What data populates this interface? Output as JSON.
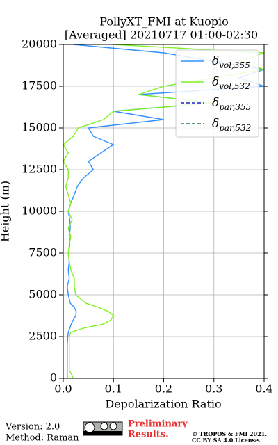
{
  "chart_data": {
    "type": "line",
    "orientation": "vertical-profile",
    "title": "PollyXT_FMI at Kuopio",
    "subtitle": "[Averaged] 20210717 01:00-02:30",
    "x_label": "Depolarization Ratio",
    "y_label": "Height (m)",
    "y": [
      0,
      500,
      1000,
      1500,
      2000,
      2500,
      2750,
      3000,
      3250,
      3500,
      3750,
      4000,
      4250,
      4500,
      5000,
      5500,
      6000,
      6500,
      7000,
      7500,
      8000,
      8500,
      9000,
      9500,
      10000,
      10500,
      11000,
      11500,
      12000,
      12500,
      13000,
      13500,
      14000,
      14500,
      15000,
      15500,
      16000,
      16500,
      17000,
      17500,
      18000,
      18500,
      19000,
      19500,
      20000
    ],
    "series": [
      {
        "name": "δvol,355",
        "color": "#3090ff",
        "dash": "solid",
        "values": [
          0.008,
          0.008,
          0.008,
          0.008,
          0.008,
          0.009,
          0.01,
          0.013,
          0.016,
          0.02,
          0.025,
          0.026,
          0.022,
          0.014,
          0.01,
          0.008,
          0.012,
          0.01,
          0.012,
          0.01,
          0.013,
          0.012,
          0.014,
          0.013,
          0.01,
          0.015,
          0.022,
          0.028,
          0.04,
          0.06,
          0.05,
          0.075,
          0.1,
          0.06,
          0.05,
          0.2,
          0.1,
          0.3,
          0.15,
          0.4,
          0.35,
          0.4,
          0.3,
          0.2,
          0.02
        ]
      },
      {
        "name": "δvol,532",
        "color": "#80f020",
        "dash": "solid",
        "values": [
          0.02,
          0.012,
          0.012,
          0.012,
          0.012,
          0.012,
          0.015,
          0.04,
          0.08,
          0.095,
          0.1,
          0.09,
          0.07,
          0.045,
          0.025,
          0.022,
          0.022,
          0.015,
          0.012,
          0.01,
          0.012,
          0.015,
          0.01,
          0.018,
          0.01,
          0.015,
          0.01,
          0.005,
          0.01,
          0.01,
          0.0,
          0.01,
          0.0,
          0.02,
          0.03,
          0.08,
          0.1,
          0.3,
          0.15,
          0.2,
          0.3,
          0.4,
          0.35,
          0.4,
          0.1
        ]
      },
      {
        "name": "δpar,355",
        "color": "#2020c0",
        "dash": "dashed",
        "values": [
          null,
          null,
          null,
          null,
          null,
          null,
          null,
          null,
          null,
          null,
          null,
          null,
          null,
          null,
          null,
          null,
          null,
          null,
          null,
          null,
          null,
          null,
          null,
          null,
          null,
          null,
          null,
          null,
          null,
          null,
          null,
          null,
          null,
          null,
          null,
          null,
          null,
          null,
          null,
          null,
          null,
          null,
          null,
          null,
          null
        ]
      },
      {
        "name": "δpar,532",
        "color": "#208040",
        "dash": "dashed",
        "values": [
          null,
          null,
          null,
          null,
          null,
          null,
          null,
          null,
          null,
          null,
          null,
          null,
          null,
          null,
          null,
          null,
          null,
          null,
          null,
          null,
          null,
          null,
          null,
          null,
          null,
          null,
          null,
          null,
          null,
          null,
          null,
          null,
          null,
          null,
          null,
          null,
          null,
          null,
          null,
          null,
          null,
          null,
          null,
          null,
          null
        ]
      }
    ],
    "xlim": [
      0,
      0.4
    ],
    "xticks": [
      {
        "value": 0,
        "label": "0.0"
      },
      0.1,
      0.2,
      0.3,
      0.4
    ],
    "ylim": [
      0,
      20000
    ],
    "yticks": [
      0,
      2500,
      5000,
      7500,
      10000,
      12500,
      15000,
      17500,
      20000
    ],
    "grid": true,
    "legend": "upper right"
  },
  "footer": {
    "version": "Version: 2.0",
    "method": "Method: Raman",
    "notice": [
      "Preliminary",
      "Results."
    ],
    "copyright": [
      "© TROPOS & FMI 2021.",
      "CC BY SA 4.0 License."
    ]
  }
}
